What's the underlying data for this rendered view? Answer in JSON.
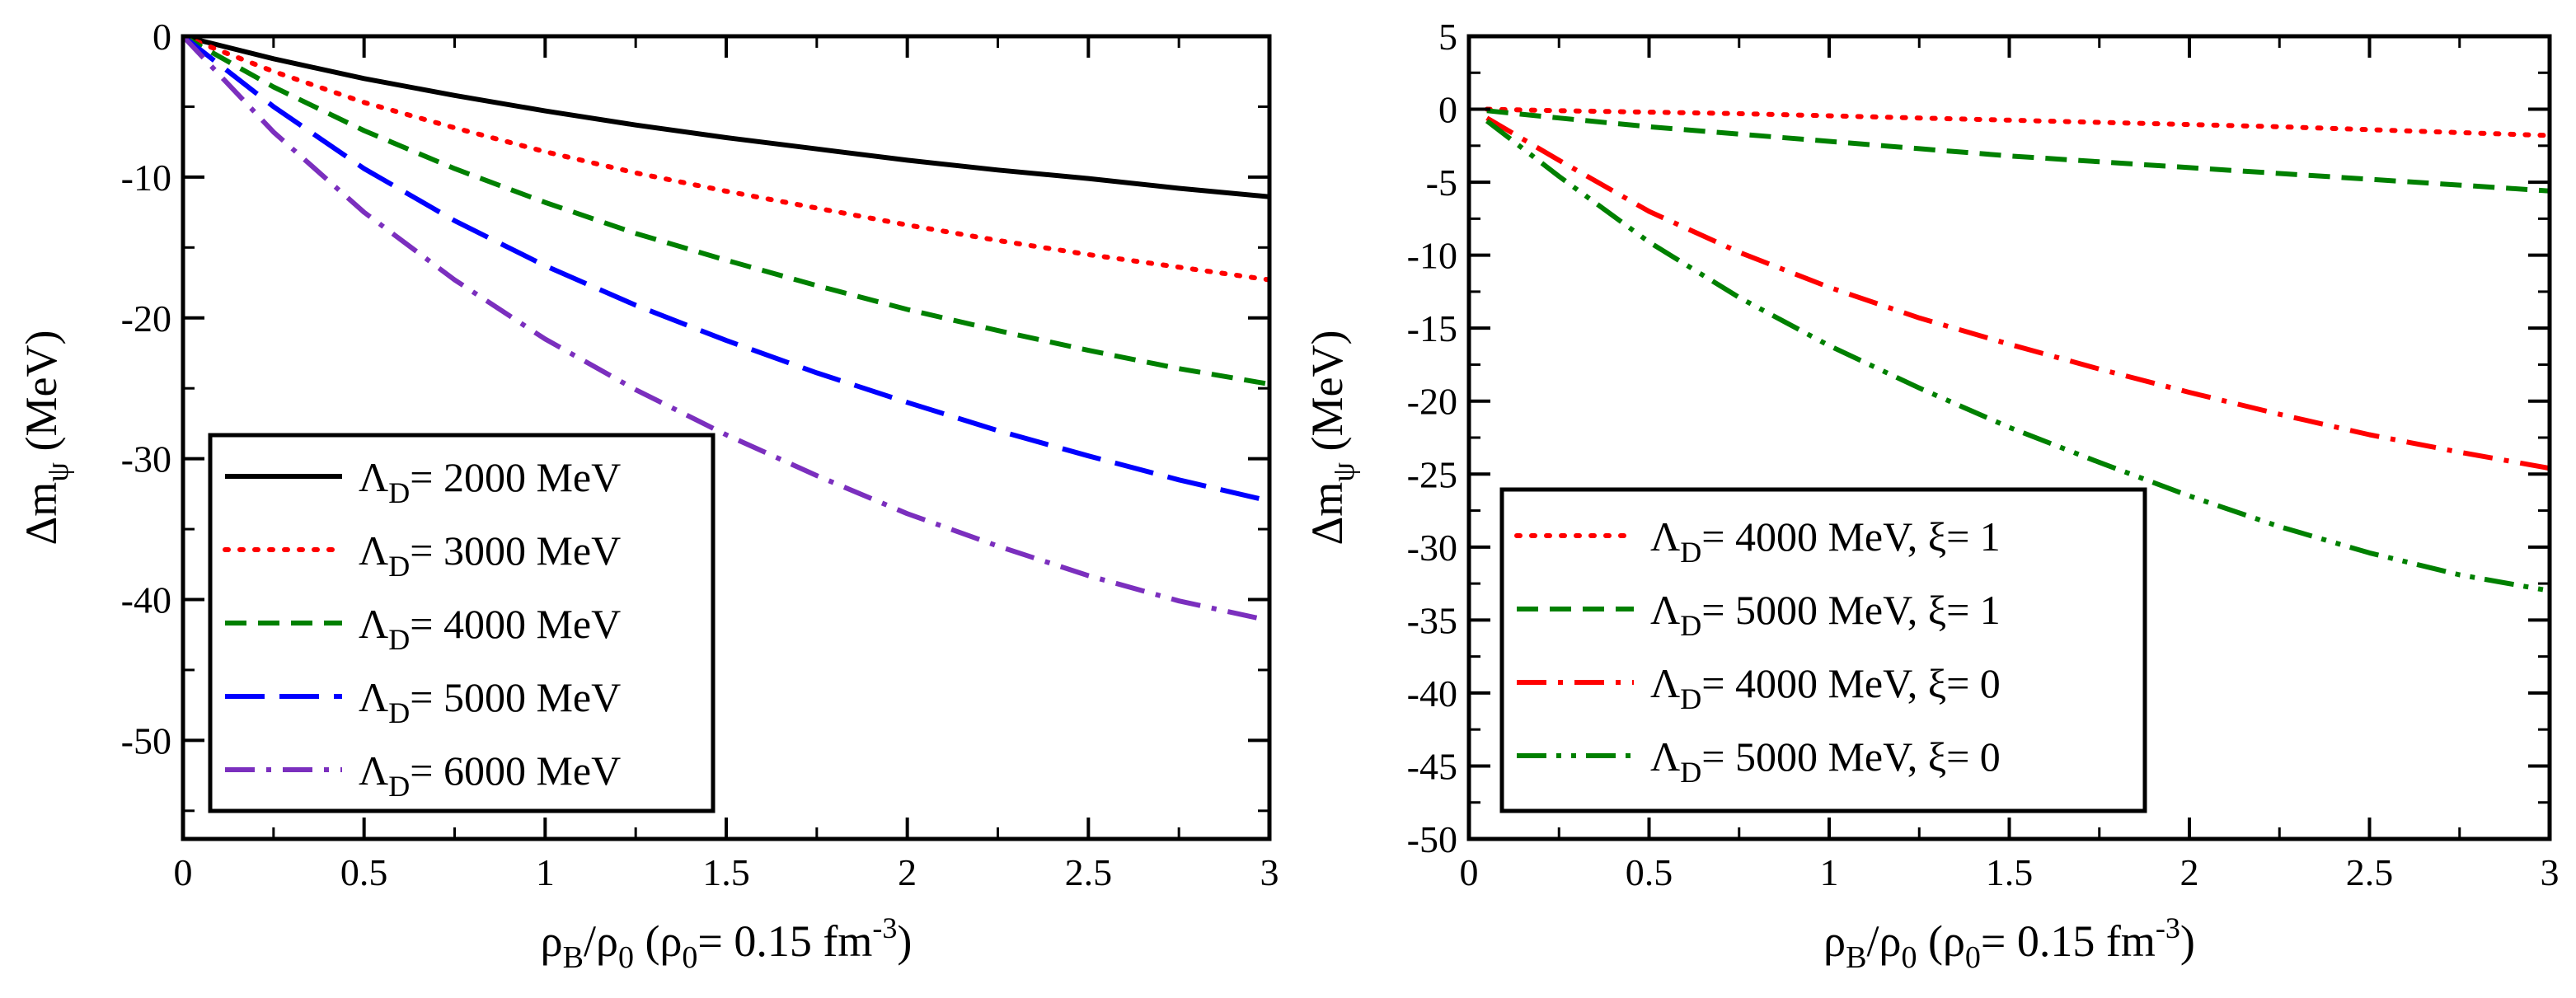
{
  "chart_data": [
    {
      "type": "line",
      "xlabel": "ρB/ρ0 (ρ0= 0.15 fm-3)",
      "xlabel_parts": {
        "rho": "ρ",
        "sub_b": "B",
        "slash": "/",
        "sub_0": "0",
        "open": " (",
        "rho_eq": "= 0.15 fm",
        "sup": "-3",
        "close": ")"
      },
      "ylabel": "Δmψ (MeV)",
      "ylabel_parts": {
        "delta_m": "Δm",
        "sub": "ψ",
        "unit": " (MeV)"
      },
      "xlim": [
        0,
        3
      ],
      "ylim": [
        -57,
        0
      ],
      "x_ticks": [
        0,
        0.5,
        1,
        1.5,
        2,
        2.5,
        3
      ],
      "x_tick_labels": [
        "0",
        "0.5",
        "1",
        "1.5",
        "2",
        "2.5",
        "3"
      ],
      "y_ticks": [
        0,
        -10,
        -20,
        -30,
        -40,
        -50
      ],
      "y_tick_labels": [
        "0",
        "-10",
        "-20",
        "-30",
        "-40",
        "-50"
      ],
      "legend_position": "bottom-left",
      "x": [
        0,
        0.25,
        0.5,
        0.75,
        1,
        1.25,
        1.5,
        1.75,
        2,
        2.25,
        2.5,
        2.75,
        3
      ],
      "series": [
        {
          "name": "ΛD= 2000 MeV",
          "label_prefix": "Λ",
          "label_sub": "D",
          "label_rest": "= 2000 MeV",
          "color": "#000000",
          "dash": "solid",
          "values": [
            0,
            -1.6,
            -3.0,
            -4.2,
            -5.3,
            -6.3,
            -7.2,
            -8.0,
            -8.8,
            -9.5,
            -10.1,
            -10.8,
            -11.4
          ]
        },
        {
          "name": "ΛD= 3000 MeV",
          "label_prefix": "Λ",
          "label_sub": "D",
          "label_rest": "= 3000 MeV",
          "color": "#ff0000",
          "dash": "dot",
          "values": [
            0,
            -2.5,
            -4.7,
            -6.5,
            -8.2,
            -9.7,
            -11.0,
            -12.2,
            -13.4,
            -14.5,
            -15.5,
            -16.4,
            -17.3
          ]
        },
        {
          "name": "ΛD= 4000 MeV",
          "label_prefix": "Λ",
          "label_sub": "D",
          "label_rest": "= 4000 MeV",
          "color": "#008000",
          "dash": "dash",
          "values": [
            0,
            -3.6,
            -6.7,
            -9.4,
            -11.8,
            -14.0,
            -15.9,
            -17.7,
            -19.4,
            -20.9,
            -22.3,
            -23.6,
            -24.7
          ]
        },
        {
          "name": "ΛD= 5000 MeV",
          "label_prefix": "Λ",
          "label_sub": "D",
          "label_rest": "= 5000 MeV",
          "color": "#0000ff",
          "dash": "longdash",
          "values": [
            0,
            -5.0,
            -9.4,
            -13.1,
            -16.3,
            -19.1,
            -21.6,
            -23.9,
            -26.0,
            -28.0,
            -29.8,
            -31.5,
            -33.0
          ]
        },
        {
          "name": "ΛD= 6000 MeV",
          "label_prefix": "Λ",
          "label_sub": "D",
          "label_rest": "= 6000 MeV",
          "color": "#7b2fbe",
          "dash": "dashdot",
          "values": [
            0,
            -6.8,
            -12.5,
            -17.3,
            -21.5,
            -25.1,
            -28.3,
            -31.2,
            -33.9,
            -36.2,
            -38.3,
            -40.1,
            -41.5
          ]
        }
      ]
    },
    {
      "type": "line",
      "xlabel": "ρB/ρ0 (ρ0= 0.15 fm-3)",
      "xlabel_parts": {
        "rho": "ρ",
        "sub_b": "B",
        "slash": "/",
        "sub_0": "0",
        "open": " (",
        "rho_eq": "= 0.15 fm",
        "sup": "-3",
        "close": ")"
      },
      "ylabel": "Δmψ (MeV)",
      "ylabel_parts": {
        "delta_m": "Δm",
        "sub": "ψ",
        "unit": " (MeV)"
      },
      "xlim": [
        0,
        3
      ],
      "ylim": [
        -50,
        5
      ],
      "x_ticks": [
        0,
        0.5,
        1,
        1.5,
        2,
        2.5,
        3
      ],
      "x_tick_labels": [
        "0",
        "0.5",
        "1",
        "1.5",
        "2",
        "2.5",
        "3"
      ],
      "y_ticks": [
        5,
        0,
        -5,
        -10,
        -15,
        -20,
        -25,
        -30,
        -35,
        -40,
        -45,
        -50
      ],
      "y_tick_labels": [
        "5",
        "0",
        "-5",
        "-10",
        "-15",
        "-20",
        "-25",
        "-30",
        "-35",
        "-40",
        "-45",
        "-50"
      ],
      "legend_position": "bottom-left",
      "x": [
        0.05,
        0.25,
        0.5,
        0.75,
        1,
        1.25,
        1.5,
        1.75,
        2,
        2.25,
        2.5,
        2.75,
        3
      ],
      "series": [
        {
          "name": "ΛD= 4000 MeV, ξ= 1",
          "label_prefix": "Λ",
          "label_sub": "D",
          "label_rest": "= 4000 MeV, ξ= 1",
          "color": "#ff0000",
          "dash": "dot",
          "values": [
            0,
            -0.1,
            -0.2,
            -0.3,
            -0.45,
            -0.6,
            -0.75,
            -0.9,
            -1.05,
            -1.2,
            -1.4,
            -1.6,
            -1.8
          ]
        },
        {
          "name": "ΛD= 5000 MeV, ξ= 1",
          "label_prefix": "Λ",
          "label_sub": "D",
          "label_rest": "= 5000 MeV, ξ= 1",
          "color": "#008000",
          "dash": "dash",
          "values": [
            -0.1,
            -0.6,
            -1.2,
            -1.7,
            -2.2,
            -2.7,
            -3.2,
            -3.6,
            -4.0,
            -4.4,
            -4.8,
            -5.2,
            -5.6
          ]
        },
        {
          "name": "ΛD= 4000 MeV, ξ= 0",
          "label_prefix": "Λ",
          "label_sub": "D",
          "label_rest": "= 4000 MeV, ξ= 0",
          "color": "#ff0000",
          "dash": "dashdot",
          "values": [
            -0.6,
            -3.5,
            -7.0,
            -9.8,
            -12.2,
            -14.3,
            -16.1,
            -17.8,
            -19.4,
            -20.9,
            -22.3,
            -23.5,
            -24.6
          ]
        },
        {
          "name": "ΛD= 5000 MeV, ξ= 0",
          "label_prefix": "Λ",
          "label_sub": "D",
          "label_rest": "= 5000 MeV, ξ= 0",
          "color": "#008000",
          "dash": "dashdotdot",
          "values": [
            -0.8,
            -4.6,
            -9.1,
            -12.9,
            -16.2,
            -19.1,
            -21.8,
            -24.2,
            -26.5,
            -28.6,
            -30.4,
            -31.9,
            -33.0
          ]
        }
      ]
    }
  ]
}
